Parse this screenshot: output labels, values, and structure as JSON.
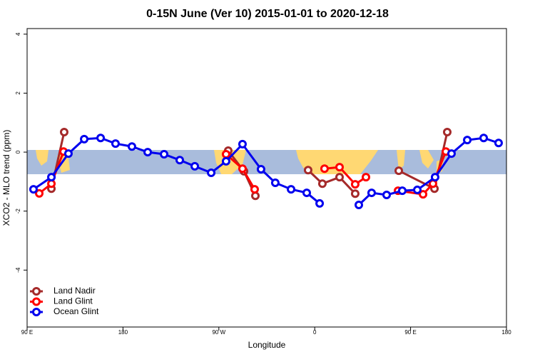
{
  "chart_data": {
    "type": "line",
    "title": "0-15N June (Ver 10)   2015-01-01 to 2020-12-18",
    "x_label": "Longitude",
    "y_label": "XCO2 - MLO trend (ppm)",
    "xlim": [
      90,
      540
    ],
    "ylim": [
      -5.93,
      4.19
    ],
    "xticks": [
      {
        "value": 90,
        "label": "90 E"
      },
      180,
      {
        "value": 270,
        "label": "90 W"
      },
      {
        "value": 360,
        "label": "0"
      },
      {
        "value": 450,
        "label": "90 E"
      },
      {
        "value": 540,
        "label": "180"
      }
    ],
    "yticks": [
      -4,
      -2,
      0,
      2,
      4
    ],
    "legend": "bottom-left",
    "series": [
      {
        "name": "Land Nadir",
        "color": "#a52a2a",
        "x": [
          112.8,
          124.8,
          null,
          278.8,
          293.6,
          304.3,
          null,
          353.8,
          367.2,
          383.3,
          398.0,
          null,
          438.9,
          472.4,
          484.4
        ],
        "values": [
          -1.24,
          0.68,
          null,
          0.05,
          -0.65,
          -1.48,
          null,
          -0.61,
          -1.07,
          -0.85,
          -1.41,
          null,
          -0.63,
          -1.24,
          0.68
        ]
      },
      {
        "name": "Land Glint",
        "color": "#ff0000",
        "x": [
          101.4,
          112.8,
          124.2,
          null,
          276.8,
          292.2,
          303.6,
          null,
          369.2,
          383.3,
          398.0,
          408.1,
          null,
          438.2,
          461.7,
          471.0,
          483.1
        ],
        "values": [
          -1.4,
          -1.07,
          0.02,
          null,
          -0.07,
          -0.56,
          -1.26,
          null,
          -0.56,
          -0.51,
          -1.09,
          -0.85,
          null,
          -1.31,
          -1.43,
          -1.07,
          0.02
        ]
      },
      {
        "name": "Ocean Glint",
        "color": "#0000ee",
        "x": [
          96.0,
          112.8,
          128.8,
          143.6,
          159.0,
          173.0,
          188.4,
          203.2,
          218.6,
          233.3,
          247.4,
          262.8,
          276.8,
          292.2,
          309.6,
          323.0,
          337.8,
          352.5,
          364.6,
          null,
          401.4,
          413.4,
          427.5,
          442.2,
          456.3,
          473.0,
          488.4,
          503.2,
          518.6,
          532.6
        ],
        "values": [
          -1.26,
          -0.85,
          -0.05,
          0.44,
          0.48,
          0.29,
          0.19,
          0.0,
          -0.07,
          -0.27,
          -0.48,
          -0.7,
          -0.31,
          0.27,
          -0.58,
          -1.04,
          -1.26,
          -1.38,
          -1.74,
          null,
          -1.79,
          -1.38,
          -1.45,
          -1.31,
          -1.28,
          -0.85,
          -0.05,
          0.41,
          0.48,
          0.31
        ]
      }
    ]
  }
}
